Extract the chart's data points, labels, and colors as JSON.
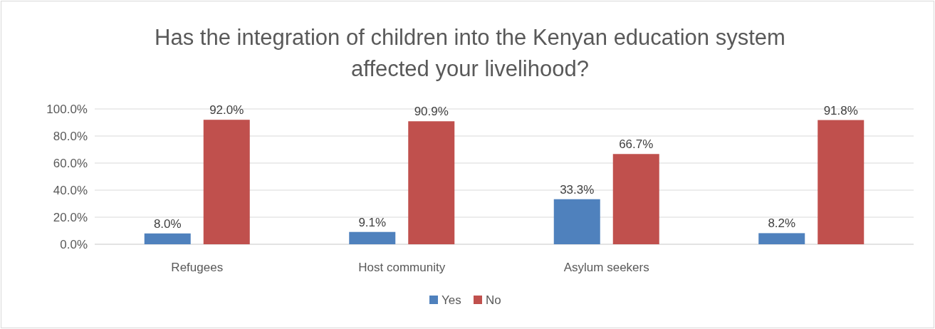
{
  "chart_data": {
    "type": "bar",
    "title": "Has the integration of children into the Kenyan education system affected your livelihood?",
    "categories": [
      "Refugees",
      "Host community",
      "Asylum seekers",
      null
    ],
    "series": [
      {
        "name": "Yes",
        "color": "#4f81bd",
        "values": [
          8.0,
          9.1,
          33.3,
          8.2
        ],
        "value_labels": [
          "8.0%",
          "9.1%",
          "33.3%",
          "8.2%"
        ]
      },
      {
        "name": "No",
        "color": "#c0504d",
        "values": [
          92.0,
          90.9,
          66.7,
          91.8
        ],
        "value_labels": [
          "92.0%",
          "90.9%",
          "66.7%",
          "91.8%"
        ]
      }
    ],
    "ylim": [
      0,
      100
    ],
    "yticks": [
      {
        "value": 0,
        "label": "0.0%"
      },
      {
        "value": 20,
        "label": "20.0%"
      },
      {
        "value": 40,
        "label": "40.0%"
      },
      {
        "value": 60,
        "label": "60.0%"
      },
      {
        "value": 80,
        "label": "80.0%"
      },
      {
        "value": 100,
        "label": "100.0%"
      }
    ],
    "grid": "y",
    "legend": "bottom"
  }
}
